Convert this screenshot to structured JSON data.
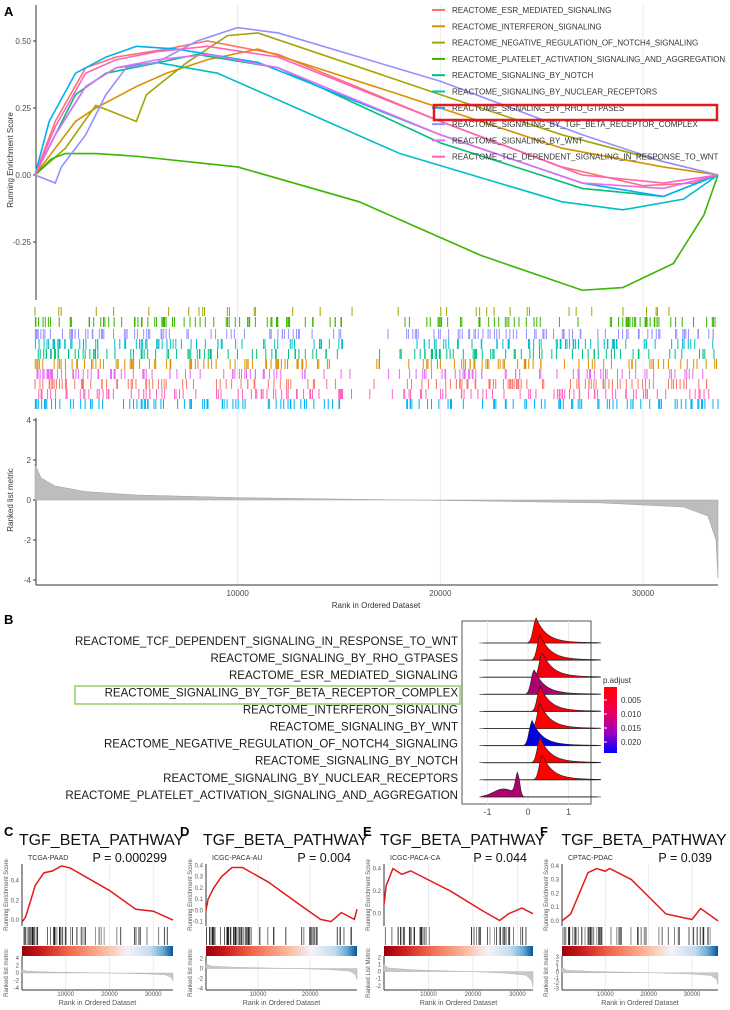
{
  "chart_data": [
    {
      "panel": "A",
      "type": "line",
      "xlabel": "Rank in Ordered Dataset",
      "ylabel": "Running Enrichment Score",
      "ylabel_lower": "Ranked list metric",
      "xticks": [
        10000,
        20000,
        30000
      ],
      "yticks": [
        0.5,
        0.25,
        0.0,
        -0.25
      ],
      "ytick_labels": [
        "0.50",
        "0.25",
        "0.00",
        "-0.25"
      ],
      "yticks_lower": [
        4,
        2,
        0,
        -2,
        -4
      ],
      "xlim": [
        0,
        33700
      ],
      "legend_position": "top-right",
      "highlighted": "REACTOME_SIGNALING_BY_TGF_BETA_RECEPTOR_COMPLEX",
      "highlight_color": "#e41a1c",
      "series": [
        {
          "name": "REACTOME_ESR_MEDIATED_SIGNALING",
          "color": "#F8766D",
          "points": [
            [
              0,
              0
            ],
            [
              1000,
              0.2
            ],
            [
              2500,
              0.4
            ],
            [
              4000,
              0.44
            ],
            [
              6500,
              0.47
            ],
            [
              8500,
              0.5
            ],
            [
              12000,
              0.45
            ],
            [
              20000,
              0.2
            ],
            [
              26000,
              0.03
            ],
            [
              30000,
              -0.04
            ],
            [
              32500,
              -0.03
            ],
            [
              33700,
              0
            ]
          ]
        },
        {
          "name": "REACTOME_INTERFERON_SIGNALING",
          "color": "#D89000",
          "points": [
            [
              0,
              0
            ],
            [
              1000,
              0.1
            ],
            [
              2000,
              0.2
            ],
            [
              3000,
              0.25
            ],
            [
              5000,
              0.33
            ],
            [
              6500,
              0.38
            ],
            [
              8500,
              0.43
            ],
            [
              11000,
              0.47
            ],
            [
              18000,
              0.3
            ],
            [
              26000,
              0.1
            ],
            [
              31000,
              0.03
            ],
            [
              33700,
              0
            ]
          ]
        },
        {
          "name": "REACTOME_NEGATIVE_REGULATION_OF_NOTCH4_SIGNALING",
          "color": "#A3A500",
          "points": [
            [
              0,
              0
            ],
            [
              1500,
              0.1
            ],
            [
              3000,
              0.26
            ],
            [
              5000,
              0.2
            ],
            [
              5500,
              0.3
            ],
            [
              7500,
              0.42
            ],
            [
              9500,
              0.52
            ],
            [
              11000,
              0.53
            ],
            [
              20000,
              0.3
            ],
            [
              26000,
              0.15
            ],
            [
              31000,
              0.05
            ],
            [
              33700,
              0
            ]
          ]
        },
        {
          "name": "REACTOME_PLATELET_ACTIVATION_SIGNALING_AND_AGGREGATION",
          "color": "#39B600",
          "points": [
            [
              0,
              0
            ],
            [
              800,
              0.06
            ],
            [
              1500,
              0.08
            ],
            [
              3000,
              0.08
            ],
            [
              5000,
              0.07
            ],
            [
              10000,
              0.03
            ],
            [
              16000,
              -0.1
            ],
            [
              22000,
              -0.3
            ],
            [
              27000,
              -0.43
            ],
            [
              29000,
              -0.42
            ],
            [
              31500,
              -0.33
            ],
            [
              33000,
              -0.15
            ],
            [
              33700,
              0
            ]
          ]
        },
        {
          "name": "REACTOME_SIGNALING_BY_NOTCH",
          "color": "#00BF7D",
          "points": [
            [
              0,
              0
            ],
            [
              1000,
              0.15
            ],
            [
              2000,
              0.3
            ],
            [
              3500,
              0.38
            ],
            [
              5500,
              0.41
            ],
            [
              8000,
              0.45
            ],
            [
              12000,
              0.4
            ],
            [
              20000,
              0.12
            ],
            [
              27000,
              -0.05
            ],
            [
              31000,
              -0.08
            ],
            [
              33700,
              0
            ]
          ]
        },
        {
          "name": "REACTOME_SIGNALING_BY_NUCLEAR_RECEPTORS",
          "color": "#00BFC4",
          "points": [
            [
              0,
              0
            ],
            [
              1000,
              0.15
            ],
            [
              2500,
              0.33
            ],
            [
              4000,
              0.4
            ],
            [
              6000,
              0.42
            ],
            [
              9000,
              0.38
            ],
            [
              18000,
              0.08
            ],
            [
              26000,
              -0.1
            ],
            [
              29000,
              -0.13
            ],
            [
              32000,
              -0.09
            ],
            [
              33700,
              0
            ]
          ]
        },
        {
          "name": "REACTOME_SIGNALING_BY_RHO_GTPASES",
          "color": "#00B0F6",
          "points": [
            [
              0,
              0
            ],
            [
              700,
              0.2
            ],
            [
              2000,
              0.38
            ],
            [
              3500,
              0.44
            ],
            [
              5000,
              0.48
            ],
            [
              7000,
              0.47
            ],
            [
              11000,
              0.42
            ],
            [
              20000,
              0.15
            ],
            [
              27000,
              -0.03
            ],
            [
              31000,
              -0.08
            ],
            [
              33700,
              0
            ]
          ]
        },
        {
          "name": "REACTOME_SIGNALING_BY_TGF_BETA_RECEPTOR_COMPLEX",
          "color": "#9590FF",
          "points": [
            [
              0,
              0
            ],
            [
              1000,
              -0.03
            ],
            [
              1300,
              0.03
            ],
            [
              2500,
              0.15
            ],
            [
              3500,
              0.3
            ],
            [
              4500,
              0.4
            ],
            [
              6000,
              0.42
            ],
            [
              8000,
              0.5
            ],
            [
              10000,
              0.55
            ],
            [
              12000,
              0.53
            ],
            [
              20000,
              0.35
            ],
            [
              27000,
              0.15
            ],
            [
              31000,
              0.05
            ],
            [
              33700,
              0
            ]
          ]
        },
        {
          "name": "REACTOME_SIGNALING_BY_WNT",
          "color": "#E76BF3",
          "points": [
            [
              0,
              0
            ],
            [
              1000,
              0.15
            ],
            [
              2500,
              0.33
            ],
            [
              4000,
              0.4
            ],
            [
              6000,
              0.43
            ],
            [
              8500,
              0.45
            ],
            [
              12000,
              0.4
            ],
            [
              20000,
              0.15
            ],
            [
              27000,
              -0.03
            ],
            [
              31000,
              -0.05
            ],
            [
              33700,
              0
            ]
          ]
        },
        {
          "name": "REACTOME_TCF_DEPENDENT_SIGNALING_IN_RESPONSE_TO_WNT",
          "color": "#FF62BC",
          "points": [
            [
              0,
              0
            ],
            [
              1000,
              0.18
            ],
            [
              2500,
              0.38
            ],
            [
              4000,
              0.43
            ],
            [
              6000,
              0.46
            ],
            [
              8500,
              0.48
            ],
            [
              12000,
              0.44
            ],
            [
              20000,
              0.2
            ],
            [
              27000,
              0.0
            ],
            [
              31000,
              -0.03
            ],
            [
              33700,
              0
            ]
          ]
        }
      ],
      "ranked_metric": [
        [
          0,
          1.8
        ],
        [
          300,
          1.1
        ],
        [
          1000,
          0.7
        ],
        [
          2500,
          0.42
        ],
        [
          5000,
          0.25
        ],
        [
          10000,
          0.12
        ],
        [
          17000,
          0.02
        ],
        [
          22000,
          -0.05
        ],
        [
          28000,
          -0.15
        ],
        [
          32000,
          -0.35
        ],
        [
          33200,
          -0.8
        ],
        [
          33600,
          -2
        ],
        [
          33700,
          -3.9
        ]
      ]
    },
    {
      "panel": "B",
      "type": "ridgeline",
      "xticks": [
        -1,
        0,
        1
      ],
      "legend_title": "p.adjust",
      "legend_ticks": [
        "0.005",
        "0.010",
        "0.015",
        "0.020"
      ],
      "color_low": "#ff0000",
      "color_high": "#0000ff",
      "highlighted": "REACTOME_SIGNALING_BY_TGF_BETA_RECEPTOR_COMPLEX",
      "highlight_color": "#8fd16a",
      "rows": [
        {
          "label": "REACTOME_TCF_DEPENDENT_SIGNALING_IN_RESPONSE_TO_WNT",
          "peak": 0.2,
          "p_adjust": 0.001
        },
        {
          "label": "REACTOME_SIGNALING_BY_RHO_GTPASES",
          "peak": 0.3,
          "p_adjust": 0.001
        },
        {
          "label": "REACTOME_ESR_MEDIATED_SIGNALING",
          "peak": 0.35,
          "p_adjust": 0.002
        },
        {
          "label": "REACTOME_SIGNALING_BY_TGF_BETA_RECEPTOR_COMPLEX",
          "peak": 0.15,
          "p_adjust": 0.008
        },
        {
          "label": "REACTOME_INTERFERON_SIGNALING",
          "peak": 0.3,
          "p_adjust": 0.002
        },
        {
          "label": "REACTOME_SIGNALING_BY_WNT",
          "peak": 0.3,
          "p_adjust": 0.001
        },
        {
          "label": "REACTOME_NEGATIVE_REGULATION_OF_NOTCH4_SIGNALING",
          "peak": 0.1,
          "p_adjust": 0.023
        },
        {
          "label": "REACTOME_SIGNALING_BY_NOTCH",
          "peak": 0.3,
          "p_adjust": 0.001
        },
        {
          "label": "REACTOME_SIGNALING_BY_NUCLEAR_RECEPTORS",
          "peak": 0.35,
          "p_adjust": 0.001
        },
        {
          "label": "REACTOME_PLATELET_ACTIVATION_SIGNALING_AND_AGGREGATION",
          "peak": -0.25,
          "p_adjust": 0.008
        }
      ]
    },
    {
      "panel": "C",
      "type": "line",
      "title": "TGF_BETA_PATHWAY",
      "dataset": "TCGA-PAAD",
      "pvalue": "P = 0.000299",
      "ylabel": "Running Enrichment Score",
      "ylabel_lower": "Ranked list metric",
      "xlabel": "Rank in Ordered Dataset",
      "xlim": [
        0,
        34500
      ],
      "xticks": [
        10000,
        20000,
        30000
      ],
      "ylim": [
        -0.05,
        0.58
      ],
      "yticks": [
        0.0,
        0.2,
        0.4
      ],
      "ytick_labels": [
        "0.0",
        "0.2",
        "0.4"
      ],
      "yticks_lower": [
        4,
        2,
        0,
        -2,
        -4
      ],
      "mlim": [
        -4.5,
        4.5
      ],
      "color": "#e41a1c",
      "points": [
        [
          0,
          -0.02
        ],
        [
          800,
          0.03
        ],
        [
          2000,
          0.2
        ],
        [
          3000,
          0.35
        ],
        [
          5000,
          0.48
        ],
        [
          7000,
          0.5
        ],
        [
          9000,
          0.55
        ],
        [
          11000,
          0.53
        ],
        [
          20000,
          0.3
        ],
        [
          26000,
          0.11
        ],
        [
          30000,
          0.09
        ],
        [
          34500,
          0.0
        ]
      ]
    },
    {
      "panel": "D",
      "type": "line",
      "title": "TGF_BETA_PATHWAY",
      "dataset": "ICGC-PACA-AU",
      "pvalue": "P = 0.004",
      "ylabel": "Running Enrichment Score",
      "ylabel_lower": "Ranked list metric",
      "xlabel": "Rank in Ordered Dataset",
      "xlim": [
        0,
        29000
      ],
      "xticks": [
        10000,
        20000
      ],
      "ylim": [
        -0.13,
        0.42
      ],
      "yticks": [
        -0.1,
        0.0,
        0.1,
        0.2,
        0.3,
        0.4
      ],
      "ytick_labels": [
        "-0.1",
        "0.0",
        "0.1",
        "0.2",
        "0.3",
        "0.4"
      ],
      "yticks_lower": [
        2,
        0,
        -2,
        -4
      ],
      "mlim": [
        -4.3,
        2.5
      ],
      "color": "#e41a1c",
      "points": [
        [
          0,
          0
        ],
        [
          400,
          0.1
        ],
        [
          1500,
          0.2
        ],
        [
          3000,
          0.3
        ],
        [
          5000,
          0.38
        ],
        [
          7000,
          0.38
        ],
        [
          12000,
          0.25
        ],
        [
          18000,
          0.05
        ],
        [
          22000,
          -0.08
        ],
        [
          24000,
          -0.1
        ],
        [
          26000,
          -0.02
        ],
        [
          28500,
          -0.08
        ],
        [
          29000,
          0.01
        ]
      ]
    },
    {
      "panel": "E",
      "type": "line",
      "title": "TGF_BETA_PATHWAY",
      "dataset": "ICGC-PACA-CA",
      "pvalue": "P = 0.044",
      "ylabel": "Running Enrichment Score",
      "ylabel_lower": "Ranked List Metric",
      "xlabel": "Rank in Ordered Dataset",
      "xlim": [
        0,
        33500
      ],
      "xticks": [
        10000,
        20000,
        30000
      ],
      "ylim": [
        -0.1,
        0.45
      ],
      "yticks": [
        0.0,
        0.2,
        0.4
      ],
      "ytick_labels": [
        "0.0",
        "0.2",
        "0.4"
      ],
      "yticks_lower": [
        2,
        1,
        0,
        -1,
        -2
      ],
      "mlim": [
        -2.6,
        2.2
      ],
      "color": "#e41a1c",
      "points": [
        [
          0,
          0.08
        ],
        [
          500,
          0.25
        ],
        [
          2000,
          0.4
        ],
        [
          4000,
          0.35
        ],
        [
          6000,
          0.38
        ],
        [
          15000,
          0.2
        ],
        [
          22000,
          0.03
        ],
        [
          26000,
          -0.06
        ],
        [
          28000,
          0.0
        ],
        [
          31000,
          0.05
        ],
        [
          33500,
          0.0
        ]
      ]
    },
    {
      "panel": "F",
      "type": "line",
      "title": "TGF_BETA_PATHWAY",
      "dataset": "CPTAC-PDAC",
      "pvalue": "P = 0.039",
      "ylabel": "Running Enrichment Score",
      "ylabel_lower": "Ranked list metric",
      "xlabel": "Rank in Ordered Dataset",
      "xlim": [
        0,
        36000
      ],
      "xticks": [
        10000,
        20000,
        30000
      ],
      "ylim": [
        -0.03,
        0.42
      ],
      "yticks": [
        0.0,
        0.1,
        0.2,
        0.3,
        0.4
      ],
      "ytick_labels": [
        "0.0",
        "0.1",
        "0.2",
        "0.3",
        "0.4"
      ],
      "yticks_lower": [
        3,
        2,
        1,
        0,
        -1,
        -2,
        -3
      ],
      "mlim": [
        -3.3,
        3.2
      ],
      "color": "#e41a1c",
      "points": [
        [
          0,
          0
        ],
        [
          2000,
          0.05
        ],
        [
          4000,
          0.2
        ],
        [
          6000,
          0.35
        ],
        [
          8000,
          0.38
        ],
        [
          10000,
          0.36
        ],
        [
          11000,
          0.38
        ],
        [
          16000,
          0.3
        ],
        [
          24000,
          0.05
        ],
        [
          30000,
          0.01
        ],
        [
          32000,
          0.09
        ],
        [
          36000,
          0.0
        ]
      ]
    }
  ]
}
